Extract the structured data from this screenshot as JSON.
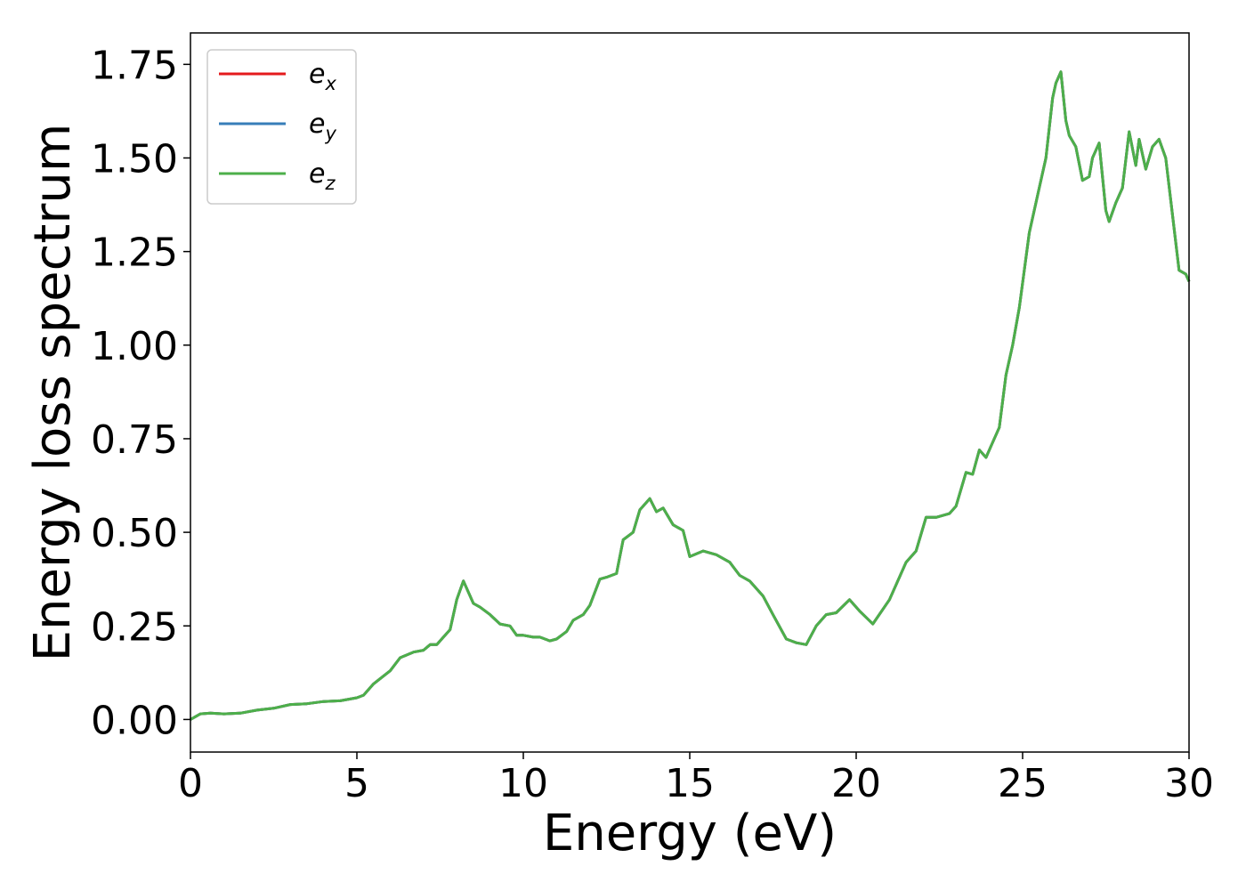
{
  "chart_data": {
    "type": "line",
    "xlabel": "Energy (eV)",
    "ylabel": "Energy loss spectrum",
    "x": [
      0,
      0.3,
      0.6,
      1,
      1.5,
      2,
      2.5,
      3,
      3.5,
      4,
      4.5,
      5,
      5.2,
      5.5,
      6,
      6.3,
      6.7,
      7,
      7.2,
      7.4,
      7.6,
      7.8,
      8,
      8.2,
      8.5,
      8.7,
      9,
      9.3,
      9.6,
      9.8,
      10,
      10.3,
      10.5,
      10.8,
      11,
      11.3,
      11.5,
      11.8,
      12,
      12.3,
      12.5,
      12.8,
      13,
      13.3,
      13.5,
      13.8,
      14,
      14.2,
      14.5,
      14.8,
      15,
      15.4,
      15.8,
      16.2,
      16.5,
      16.8,
      17.2,
      17.5,
      17.9,
      18.2,
      18.5,
      18.8,
      19.1,
      19.4,
      19.8,
      20.1,
      20.5,
      21,
      21.5,
      21.8,
      22.1,
      22.4,
      22.6,
      22.8,
      23,
      23.3,
      23.5,
      23.7,
      23.9,
      24.1,
      24.3,
      24.5,
      24.7,
      24.9,
      25.2,
      25.5,
      25.7,
      25.9,
      26,
      26.15,
      26.3,
      26.4,
      26.6,
      26.8,
      27,
      27.1,
      27.3,
      27.5,
      27.6,
      27.8,
      28,
      28.2,
      28.4,
      28.5,
      28.7,
      28.9,
      29.1,
      29.3,
      29.5,
      29.7,
      29.9,
      30
    ],
    "series": [
      {
        "name": "e_x",
        "color": "#e41a1c",
        "values": [
          0,
          0.015,
          0.017,
          0.015,
          0.017,
          0.025,
          0.03,
          0.04,
          0.042,
          0.048,
          0.05,
          0.058,
          0.065,
          0.095,
          0.13,
          0.165,
          0.18,
          0.185,
          0.2,
          0.2,
          0.22,
          0.24,
          0.32,
          0.37,
          0.31,
          0.3,
          0.28,
          0.255,
          0.25,
          0.225,
          0.225,
          0.22,
          0.22,
          0.21,
          0.215,
          0.235,
          0.265,
          0.28,
          0.305,
          0.375,
          0.38,
          0.39,
          0.48,
          0.5,
          0.56,
          0.59,
          0.555,
          0.565,
          0.52,
          0.505,
          0.435,
          0.45,
          0.44,
          0.42,
          0.385,
          0.37,
          0.33,
          0.28,
          0.215,
          0.205,
          0.2,
          0.25,
          0.28,
          0.285,
          0.32,
          0.29,
          0.255,
          0.32,
          0.42,
          0.45,
          0.54,
          0.54,
          0.545,
          0.55,
          0.57,
          0.66,
          0.655,
          0.72,
          0.7,
          0.74,
          0.78,
          0.92,
          1.0,
          1.1,
          1.3,
          1.42,
          1.5,
          1.66,
          1.7,
          1.73,
          1.6,
          1.56,
          1.53,
          1.44,
          1.45,
          1.5,
          1.54,
          1.36,
          1.33,
          1.38,
          1.42,
          1.57,
          1.48,
          1.55,
          1.47,
          1.53,
          1.55,
          1.5,
          1.35,
          1.2,
          1.19,
          1.17
        ]
      },
      {
        "name": "e_y",
        "color": "#377eb8",
        "values": [
          0,
          0.015,
          0.017,
          0.015,
          0.017,
          0.025,
          0.03,
          0.04,
          0.042,
          0.048,
          0.05,
          0.058,
          0.065,
          0.095,
          0.13,
          0.165,
          0.18,
          0.185,
          0.2,
          0.2,
          0.22,
          0.24,
          0.32,
          0.37,
          0.31,
          0.3,
          0.28,
          0.255,
          0.25,
          0.225,
          0.225,
          0.22,
          0.22,
          0.21,
          0.215,
          0.235,
          0.265,
          0.28,
          0.305,
          0.375,
          0.38,
          0.39,
          0.48,
          0.5,
          0.56,
          0.59,
          0.555,
          0.565,
          0.52,
          0.505,
          0.435,
          0.45,
          0.44,
          0.42,
          0.385,
          0.37,
          0.33,
          0.28,
          0.215,
          0.205,
          0.2,
          0.25,
          0.28,
          0.285,
          0.32,
          0.29,
          0.255,
          0.32,
          0.42,
          0.45,
          0.54,
          0.54,
          0.545,
          0.55,
          0.57,
          0.66,
          0.655,
          0.72,
          0.7,
          0.74,
          0.78,
          0.92,
          1.0,
          1.1,
          1.3,
          1.42,
          1.5,
          1.66,
          1.7,
          1.73,
          1.6,
          1.56,
          1.53,
          1.44,
          1.45,
          1.5,
          1.54,
          1.36,
          1.33,
          1.38,
          1.42,
          1.57,
          1.48,
          1.55,
          1.47,
          1.53,
          1.55,
          1.5,
          1.35,
          1.2,
          1.19,
          1.17
        ]
      },
      {
        "name": "e_z",
        "color": "#4daf4a",
        "values": [
          0,
          0.015,
          0.017,
          0.015,
          0.017,
          0.025,
          0.03,
          0.04,
          0.042,
          0.048,
          0.05,
          0.058,
          0.065,
          0.095,
          0.13,
          0.165,
          0.18,
          0.185,
          0.2,
          0.2,
          0.22,
          0.24,
          0.32,
          0.37,
          0.31,
          0.3,
          0.28,
          0.255,
          0.25,
          0.225,
          0.225,
          0.22,
          0.22,
          0.21,
          0.215,
          0.235,
          0.265,
          0.28,
          0.305,
          0.375,
          0.38,
          0.39,
          0.48,
          0.5,
          0.56,
          0.59,
          0.555,
          0.565,
          0.52,
          0.505,
          0.435,
          0.45,
          0.44,
          0.42,
          0.385,
          0.37,
          0.33,
          0.28,
          0.215,
          0.205,
          0.2,
          0.25,
          0.28,
          0.285,
          0.32,
          0.29,
          0.255,
          0.32,
          0.42,
          0.45,
          0.54,
          0.54,
          0.545,
          0.55,
          0.57,
          0.66,
          0.655,
          0.72,
          0.7,
          0.74,
          0.78,
          0.92,
          1.0,
          1.1,
          1.3,
          1.42,
          1.5,
          1.66,
          1.7,
          1.73,
          1.6,
          1.56,
          1.53,
          1.44,
          1.45,
          1.5,
          1.54,
          1.36,
          1.33,
          1.38,
          1.42,
          1.57,
          1.48,
          1.55,
          1.47,
          1.53,
          1.55,
          1.5,
          1.35,
          1.2,
          1.19,
          1.17
        ]
      }
    ],
    "xlim": [
      0,
      30
    ],
    "xticks": [
      0,
      5,
      10,
      15,
      20,
      25,
      30
    ],
    "ylim": [
      -0.087,
      1.834
    ],
    "yticks": [
      {
        "value": 0,
        "label": "0.00"
      },
      0.25,
      {
        "value": 0.5,
        "label": "0.50"
      },
      0.75,
      {
        "value": 1,
        "label": "1.00"
      },
      1.25,
      {
        "value": 1.5,
        "label": "1.50"
      },
      1.75
    ],
    "legend": "upper left"
  }
}
